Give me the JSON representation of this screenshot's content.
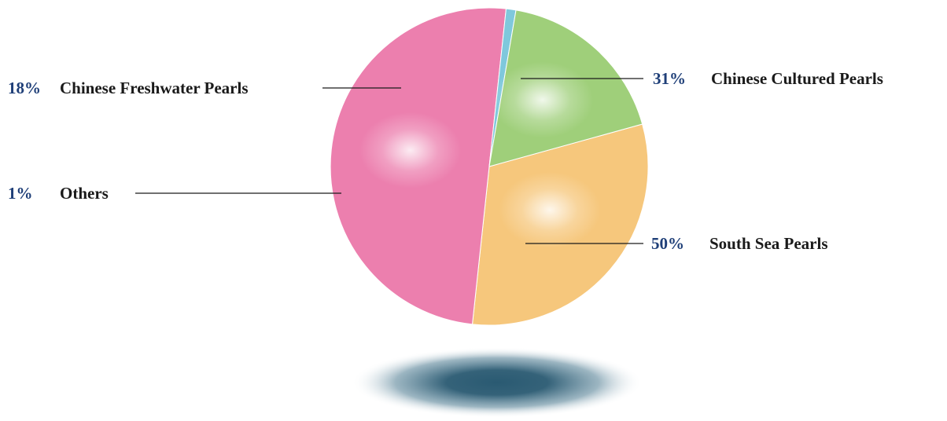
{
  "chart_data": {
    "type": "pie",
    "title": "",
    "slices": [
      {
        "label": "Chinese Cultured Pearls",
        "percent_label": "31%",
        "value": 31,
        "color": "#f6c77c"
      },
      {
        "label": "South Sea Pearls",
        "percent_label": "50%",
        "value": 50,
        "color": "#ec7fae"
      },
      {
        "label": "Others",
        "percent_label": "1%",
        "value": 1,
        "color": "#7fc8dc"
      },
      {
        "label": "Chinese Freshwater Pearls",
        "percent_label": "18%",
        "value": 18,
        "color": "#9fcf7a"
      }
    ],
    "percent_color": "#1f3f78",
    "shadow_color": "#2a5a72"
  }
}
